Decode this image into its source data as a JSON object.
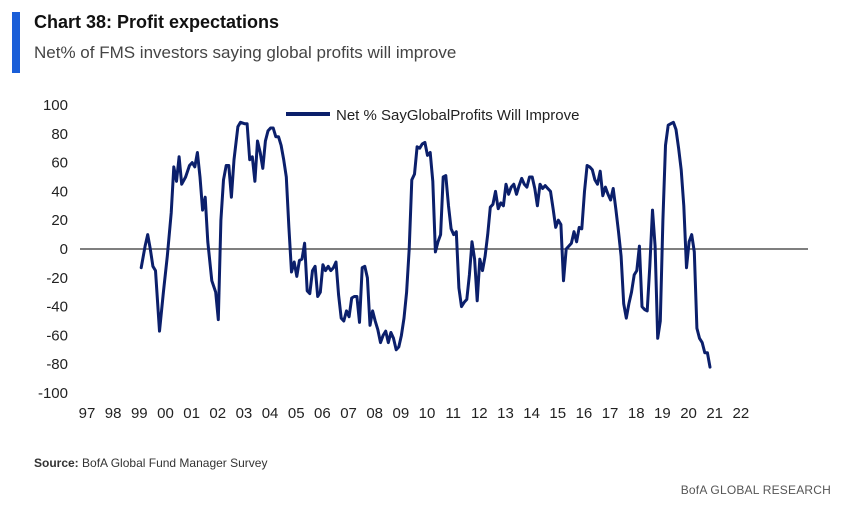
{
  "header": {
    "title": "Chart 38: Profit expectations",
    "subtitle": "Net% of FMS investors saying global profits will improve"
  },
  "footer": {
    "source_label": "Source:",
    "source_text": "BofA Global Fund Manager Survey",
    "brand": "BofA GLOBAL RESEARCH"
  },
  "colors": {
    "series": "#0b1f6b",
    "accent": "#1a5ed8",
    "zero_line": "#333333"
  },
  "chart_data": {
    "type": "line",
    "title": "Profit expectations",
    "xlabel": "",
    "ylabel": "",
    "ylim": [
      -100,
      100
    ],
    "yticks": [
      100,
      80,
      60,
      40,
      20,
      0,
      -20,
      -40,
      -60,
      -80,
      -100
    ],
    "xlim": [
      1997.0,
      2023.0
    ],
    "xticks": [
      {
        "label": "97",
        "x": 1997
      },
      {
        "label": "98",
        "x": 1998
      },
      {
        "label": "99",
        "x": 1999
      },
      {
        "label": "00",
        "x": 2000
      },
      {
        "label": "01",
        "x": 2001
      },
      {
        "label": "02",
        "x": 2002
      },
      {
        "label": "03",
        "x": 2003
      },
      {
        "label": "04",
        "x": 2004
      },
      {
        "label": "05",
        "x": 2005
      },
      {
        "label": "06",
        "x": 2006
      },
      {
        "label": "07",
        "x": 2007
      },
      {
        "label": "08",
        "x": 2008
      },
      {
        "label": "09",
        "x": 2009
      },
      {
        "label": "10",
        "x": 2010
      },
      {
        "label": "11",
        "x": 2011
      },
      {
        "label": "12",
        "x": 2012
      },
      {
        "label": "13",
        "x": 2013
      },
      {
        "label": "14",
        "x": 2014
      },
      {
        "label": "15",
        "x": 2015
      },
      {
        "label": "16",
        "x": 2016
      },
      {
        "label": "17",
        "x": 2017
      },
      {
        "label": "18",
        "x": 2018
      },
      {
        "label": "19",
        "x": 2019
      },
      {
        "label": "20",
        "x": 2020
      },
      {
        "label": "21",
        "x": 2021
      },
      {
        "label": "22",
        "x": 2022
      }
    ],
    "legend": {
      "position": "top-center",
      "label": "Net % SayGlobalProfits Will Improve"
    },
    "series": [
      {
        "name": "Net % SayGlobalProfits Will Improve",
        "points": [
          [
            1998.0,
            -13
          ],
          [
            1998.15,
            2
          ],
          [
            1998.25,
            10
          ],
          [
            1998.35,
            0
          ],
          [
            1998.45,
            -12
          ],
          [
            1998.55,
            -15
          ],
          [
            1998.7,
            -57
          ],
          [
            1998.85,
            -30
          ],
          [
            1999.0,
            -5
          ],
          [
            1999.15,
            25
          ],
          [
            1999.25,
            57
          ],
          [
            1999.35,
            47
          ],
          [
            1999.45,
            64
          ],
          [
            1999.55,
            45
          ],
          [
            1999.7,
            50
          ],
          [
            1999.85,
            58
          ],
          [
            1999.95,
            60
          ],
          [
            2000.05,
            57
          ],
          [
            2000.15,
            67
          ],
          [
            2000.25,
            50
          ],
          [
            2000.35,
            27
          ],
          [
            2000.45,
            36
          ],
          [
            2000.55,
            5
          ],
          [
            2000.7,
            -22
          ],
          [
            2000.85,
            -30
          ],
          [
            2000.95,
            -49
          ],
          [
            2001.05,
            20
          ],
          [
            2001.15,
            48
          ],
          [
            2001.25,
            58
          ],
          [
            2001.35,
            58
          ],
          [
            2001.45,
            36
          ],
          [
            2001.55,
            62
          ],
          [
            2001.7,
            85
          ],
          [
            2001.8,
            88
          ],
          [
            2001.95,
            87
          ],
          [
            2002.05,
            87
          ],
          [
            2002.15,
            62
          ],
          [
            2002.25,
            64
          ],
          [
            2002.35,
            47
          ],
          [
            2002.45,
            75
          ],
          [
            2002.55,
            67
          ],
          [
            2002.65,
            56
          ],
          [
            2002.75,
            75
          ],
          [
            2002.85,
            82
          ],
          [
            2002.95,
            84
          ],
          [
            2003.05,
            84
          ],
          [
            2003.15,
            78
          ],
          [
            2003.25,
            78
          ],
          [
            2003.35,
            72
          ],
          [
            2003.45,
            62
          ],
          [
            2003.55,
            50
          ],
          [
            2003.65,
            15
          ],
          [
            2003.75,
            -16
          ],
          [
            2003.85,
            -9
          ],
          [
            2003.95,
            -19
          ],
          [
            2004.05,
            -8
          ],
          [
            2004.15,
            -7
          ],
          [
            2004.25,
            4
          ],
          [
            2004.35,
            -29
          ],
          [
            2004.45,
            -31
          ],
          [
            2004.55,
            -15
          ],
          [
            2004.65,
            -12
          ],
          [
            2004.75,
            -33
          ],
          [
            2004.85,
            -30
          ],
          [
            2004.95,
            -11
          ],
          [
            2005.05,
            -15
          ],
          [
            2005.15,
            -12
          ],
          [
            2005.25,
            -15
          ],
          [
            2005.35,
            -13
          ],
          [
            2005.45,
            -9
          ],
          [
            2005.55,
            -32
          ],
          [
            2005.65,
            -48
          ],
          [
            2005.75,
            -50
          ],
          [
            2005.85,
            -43
          ],
          [
            2005.95,
            -47
          ],
          [
            2006.05,
            -34
          ],
          [
            2006.15,
            -33
          ],
          [
            2006.25,
            -33
          ],
          [
            2006.35,
            -51
          ],
          [
            2006.45,
            -13
          ],
          [
            2006.55,
            -12
          ],
          [
            2006.65,
            -20
          ],
          [
            2006.75,
            -53
          ],
          [
            2006.85,
            -43
          ],
          [
            2006.95,
            -50
          ],
          [
            2007.05,
            -56
          ],
          [
            2007.15,
            -65
          ],
          [
            2007.25,
            -60
          ],
          [
            2007.35,
            -57
          ],
          [
            2007.45,
            -65
          ],
          [
            2007.55,
            -58
          ],
          [
            2007.65,
            -62
          ],
          [
            2007.75,
            -70
          ],
          [
            2007.85,
            -68
          ],
          [
            2007.95,
            -60
          ],
          [
            2008.05,
            -48
          ],
          [
            2008.15,
            -30
          ],
          [
            2008.25,
            0
          ],
          [
            2008.35,
            48
          ],
          [
            2008.45,
            52
          ],
          [
            2008.55,
            71
          ],
          [
            2008.65,
            70
          ],
          [
            2008.75,
            73
          ],
          [
            2008.85,
            74
          ],
          [
            2008.95,
            65
          ],
          [
            2009.05,
            67
          ],
          [
            2009.15,
            47
          ],
          [
            2009.25,
            -2
          ],
          [
            2009.35,
            5
          ],
          [
            2009.45,
            10
          ],
          [
            2009.55,
            50
          ],
          [
            2009.65,
            51
          ],
          [
            2009.75,
            30
          ],
          [
            2009.85,
            14
          ],
          [
            2009.95,
            10
          ],
          [
            2010.05,
            12
          ],
          [
            2010.15,
            -27
          ],
          [
            2010.25,
            -40
          ],
          [
            2010.35,
            -37
          ],
          [
            2010.45,
            -35
          ],
          [
            2010.55,
            -18
          ],
          [
            2010.65,
            5
          ],
          [
            2010.75,
            -7
          ],
          [
            2010.85,
            -36
          ],
          [
            2010.95,
            -7
          ],
          [
            2011.05,
            -15
          ],
          [
            2011.15,
            -5
          ],
          [
            2011.25,
            10
          ],
          [
            2011.35,
            29
          ],
          [
            2011.45,
            31
          ],
          [
            2011.55,
            40
          ],
          [
            2011.65,
            28
          ],
          [
            2011.75,
            32
          ],
          [
            2011.85,
            30
          ],
          [
            2011.95,
            45
          ],
          [
            2012.05,
            38
          ],
          [
            2012.15,
            43
          ],
          [
            2012.25,
            45
          ],
          [
            2012.35,
            38
          ],
          [
            2012.45,
            44
          ],
          [
            2012.55,
            49
          ],
          [
            2012.65,
            45
          ],
          [
            2012.75,
            43
          ],
          [
            2012.85,
            50
          ],
          [
            2012.95,
            50
          ],
          [
            2013.05,
            42
          ],
          [
            2013.15,
            30
          ],
          [
            2013.25,
            45
          ],
          [
            2013.35,
            42
          ],
          [
            2013.45,
            44
          ],
          [
            2013.55,
            42
          ],
          [
            2013.65,
            40
          ],
          [
            2013.75,
            28
          ],
          [
            2013.85,
            15
          ],
          [
            2013.95,
            20
          ],
          [
            2014.05,
            17
          ],
          [
            2014.15,
            -22
          ],
          [
            2014.25,
            0
          ],
          [
            2014.35,
            2
          ],
          [
            2014.45,
            4
          ],
          [
            2014.55,
            12
          ],
          [
            2014.65,
            5
          ],
          [
            2014.75,
            15
          ],
          [
            2014.85,
            14
          ],
          [
            2014.95,
            40
          ],
          [
            2015.05,
            58
          ],
          [
            2015.15,
            57
          ],
          [
            2015.25,
            55
          ],
          [
            2015.35,
            48
          ],
          [
            2015.45,
            45
          ],
          [
            2015.55,
            54
          ],
          [
            2015.65,
            37
          ],
          [
            2015.75,
            43
          ],
          [
            2015.85,
            38
          ],
          [
            2015.95,
            34
          ],
          [
            2016.05,
            42
          ],
          [
            2016.15,
            28
          ],
          [
            2016.25,
            12
          ],
          [
            2016.35,
            -5
          ],
          [
            2016.45,
            -38
          ],
          [
            2016.55,
            -48
          ],
          [
            2016.65,
            -38
          ],
          [
            2016.75,
            -30
          ],
          [
            2016.85,
            -18
          ],
          [
            2016.95,
            -15
          ],
          [
            2017.05,
            2
          ],
          [
            2017.15,
            -40
          ],
          [
            2017.25,
            -42
          ],
          [
            2017.35,
            -43
          ],
          [
            2017.45,
            -12
          ],
          [
            2017.55,
            27
          ],
          [
            2017.65,
            2
          ],
          [
            2017.75,
            -62
          ],
          [
            2017.85,
            -50
          ],
          [
            2017.95,
            20
          ],
          [
            2018.05,
            72
          ],
          [
            2018.15,
            86
          ],
          [
            2018.25,
            87
          ],
          [
            2018.35,
            88
          ],
          [
            2018.45,
            83
          ],
          [
            2018.55,
            70
          ],
          [
            2018.65,
            55
          ],
          [
            2018.75,
            30
          ],
          [
            2018.85,
            -13
          ],
          [
            2018.95,
            5
          ],
          [
            2019.05,
            10
          ],
          [
            2019.15,
            -2
          ],
          [
            2019.25,
            -55
          ],
          [
            2019.35,
            -62
          ],
          [
            2019.45,
            -65
          ],
          [
            2019.55,
            -72
          ],
          [
            2019.65,
            -72
          ],
          [
            2019.75,
            -82
          ]
        ]
      }
    ]
  }
}
